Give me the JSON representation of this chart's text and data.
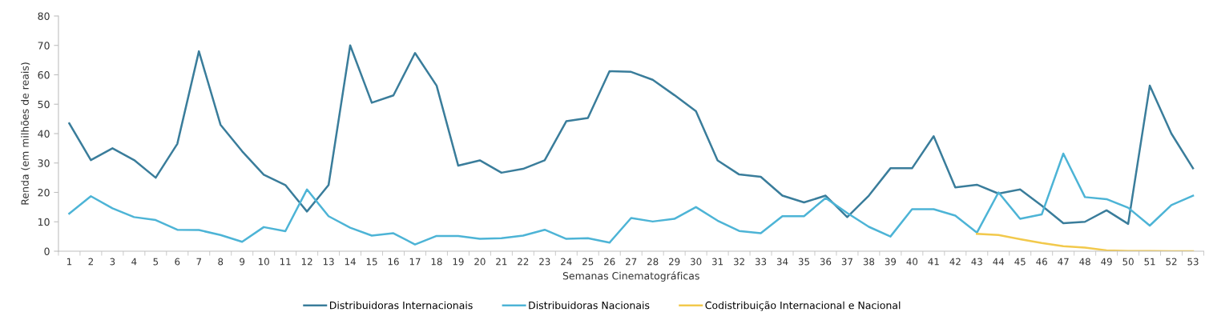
{
  "chart_data": {
    "type": "line",
    "xlabel": "Semanas Cinematográficas",
    "ylabel": "Renda (em milhões de reais)",
    "categories": [
      "1",
      "2",
      "3",
      "4",
      "5",
      "6",
      "7",
      "8",
      "9",
      "10",
      "11",
      "12",
      "13",
      "14",
      "15",
      "16",
      "17",
      "18",
      "19",
      "20",
      "21",
      "22",
      "23",
      "24",
      "25",
      "26",
      "27",
      "28",
      "29",
      "30",
      "31",
      "32",
      "33",
      "34",
      "35",
      "36",
      "37",
      "38",
      "39",
      "40",
      "41",
      "42",
      "43",
      "44",
      "45",
      "46",
      "47",
      "48",
      "49",
      "50",
      "51",
      "52",
      "53"
    ],
    "series": [
      {
        "name": "Distribuidoras Internacionais",
        "color": "#3a7d9b",
        "values": [
          43.5,
          31,
          35,
          31,
          25,
          36.5,
          68,
          43,
          34,
          26,
          22.5,
          13.5,
          22.5,
          70,
          50.5,
          53,
          67.4,
          56.3,
          29.1,
          30.9,
          26.7,
          28,
          30.9,
          44.2,
          45.3,
          61.2,
          61,
          58.3,
          53.1,
          47.6,
          30.9,
          26.1,
          25.3,
          18.9,
          16.6,
          18.9,
          11.6,
          18.9,
          28.2,
          28.2,
          39.1,
          21.7,
          22.6,
          19.6,
          21,
          15.5,
          9.5,
          10,
          13.9,
          9.3,
          56.3,
          40,
          28.2
        ]
      },
      {
        "name": "Distribuidoras Nacionais",
        "color": "#4db4d6",
        "values": [
          12.8,
          18.7,
          14.6,
          11.6,
          10.6,
          7.3,
          7.2,
          5.5,
          3.2,
          8.2,
          6.8,
          21,
          11.9,
          8,
          5.3,
          6.1,
          2.3,
          5.2,
          5.2,
          4.2,
          4.4,
          5.3,
          7.3,
          4.2,
          4.4,
          2.9,
          11.3,
          10.1,
          11,
          15,
          10.4,
          6.9,
          6.1,
          11.9,
          11.9,
          18.1,
          13,
          8.3,
          5,
          14.3,
          14.3,
          12.1,
          6.3,
          20,
          11,
          12.5,
          33.2,
          18.4,
          17.7,
          14.8,
          8.7,
          15.7,
          18.9
        ]
      },
      {
        "name": "Codistribuição Internacional e Nacional",
        "color": "#f2c94c",
        "values": [
          null,
          null,
          null,
          null,
          null,
          null,
          null,
          null,
          null,
          null,
          null,
          null,
          null,
          null,
          null,
          null,
          null,
          null,
          null,
          null,
          null,
          null,
          null,
          null,
          null,
          null,
          null,
          null,
          null,
          null,
          null,
          null,
          null,
          null,
          null,
          null,
          null,
          null,
          null,
          null,
          null,
          null,
          5.9,
          5.5,
          4.1,
          2.8,
          1.7,
          1.2,
          0.3,
          0.1,
          0.1,
          0,
          0
        ]
      }
    ],
    "ylim": [
      0,
      80
    ],
    "yticks": [
      0,
      10,
      20,
      30,
      40,
      50,
      60,
      70,
      80
    ],
    "grid": false,
    "legend": "bottom",
    "marker": "none",
    "line_style": "solid"
  }
}
